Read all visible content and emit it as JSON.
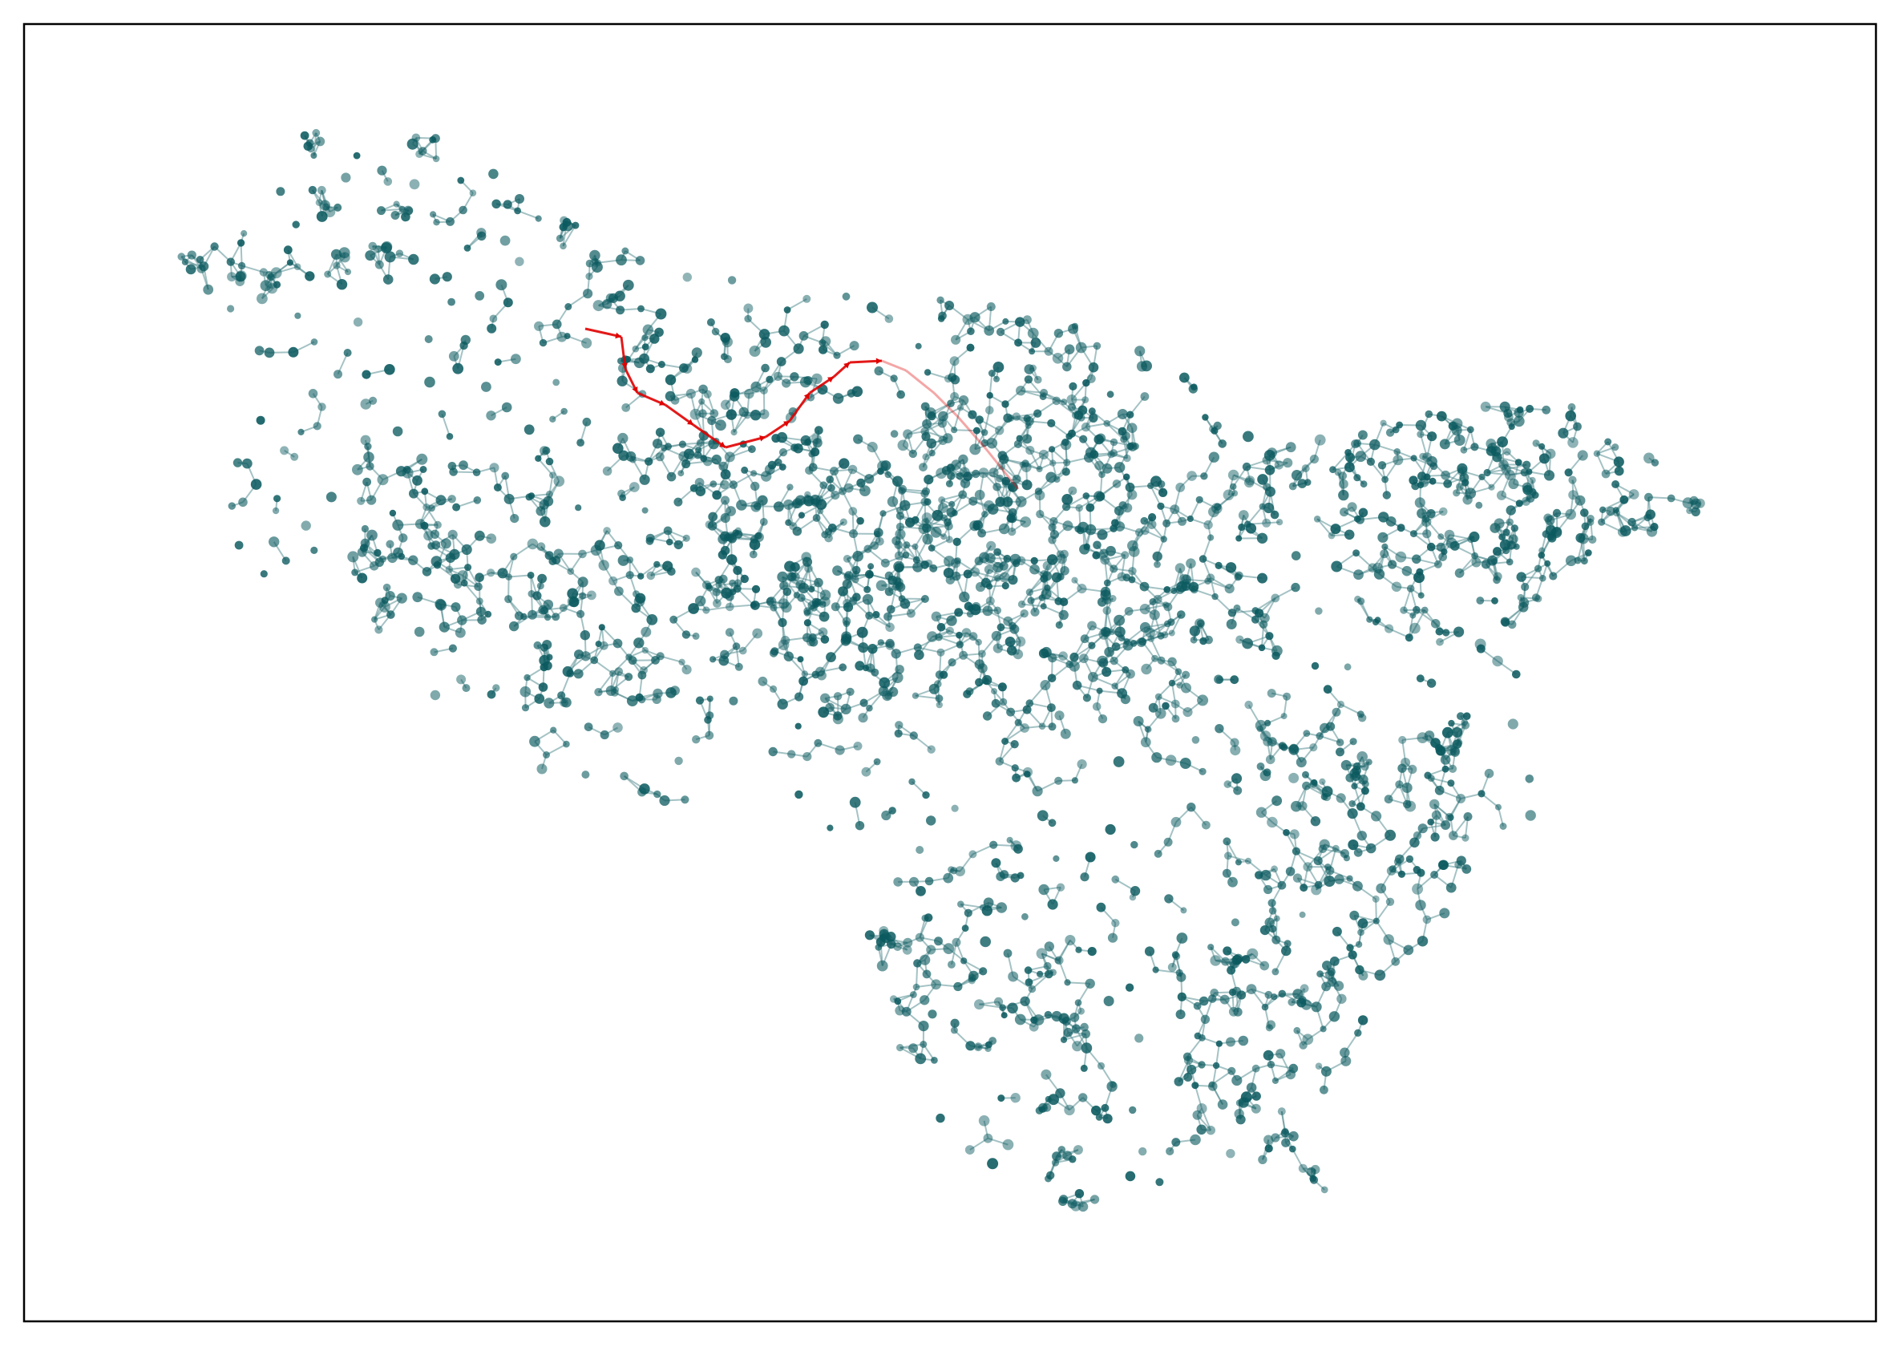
{
  "figure": {
    "kind": "network-graph",
    "axes_visible": false,
    "ticks_visible": false,
    "legend": "none",
    "title": ""
  },
  "colors": {
    "background": "#ffffff",
    "frame": "#000000",
    "node": "#0b5a5f",
    "edge": "#5a8f93",
    "path": "#e00000"
  },
  "graph": {
    "node_style": "filled circles, semi-transparent teal",
    "edge_style": "thin translucent teal arrows",
    "highlighted_path": {
      "color_name": "red",
      "description_visible": false
    }
  }
}
